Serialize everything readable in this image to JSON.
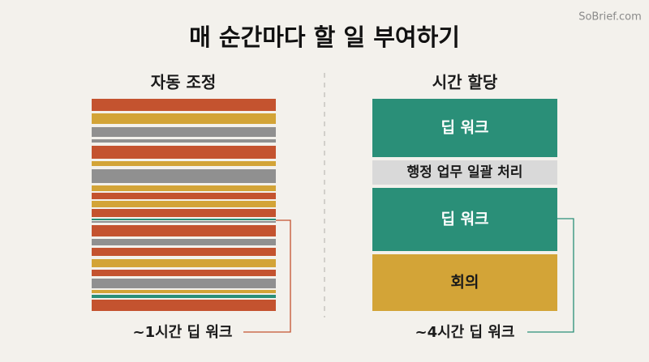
{
  "header": {
    "title": "매 순간마다 할 일 부여하기",
    "watermark": "SoBrief.com"
  },
  "left": {
    "heading": "자동 조정",
    "caption": "~1시간 딥 워크"
  },
  "right": {
    "heading": "시간 할당",
    "blocks": [
      {
        "label": "딥 워크"
      },
      {
        "label": "행정 업무 일괄 처리"
      },
      {
        "label": "딥 워크"
      },
      {
        "label": "회의"
      }
    ],
    "caption": "~4시간 딥 워크"
  }
}
